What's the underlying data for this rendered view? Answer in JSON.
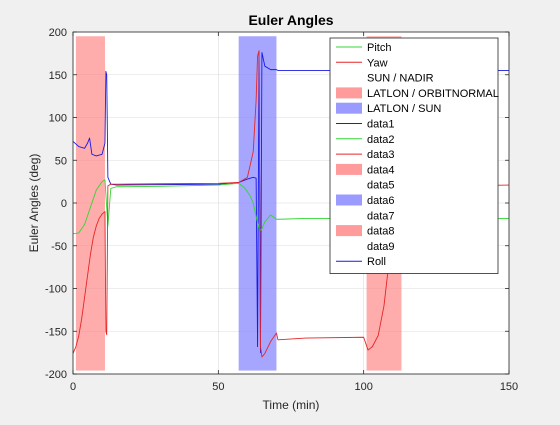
{
  "chart_data": {
    "type": "line",
    "title": "Euler Angles",
    "xlabel": "Time (min)",
    "ylabel": "Euler Angles (deg)",
    "xlim": [
      0,
      150
    ],
    "ylim": [
      -200,
      200
    ],
    "xticks": [
      0,
      50,
      100,
      150
    ],
    "yticks": [
      -200,
      -150,
      -100,
      -50,
      0,
      50,
      100,
      150,
      200
    ],
    "grid": true,
    "legend_position": "top-right",
    "shaded_regions": [
      {
        "name": "LATLON / ORBITNORMAL",
        "color": "#ff8080",
        "alpha": 0.65,
        "x": [
          1,
          11
        ]
      },
      {
        "name": "LATLON / SUN",
        "color": "#8080ff",
        "alpha": 0.7,
        "x": [
          57,
          70
        ]
      },
      {
        "name": "LATLON / ORBITNORMAL",
        "color": "#ff8080",
        "alpha": 0.65,
        "x": [
          101,
          113
        ]
      }
    ],
    "series": [
      {
        "name": "Roll",
        "color": "#1a1ae6",
        "x": [
          0,
          2,
          4,
          5,
          5.7,
          6.5,
          8,
          10,
          11,
          11.3,
          11.6,
          12,
          13,
          15,
          30,
          50,
          57,
          60,
          62,
          63,
          63.5,
          64,
          64.5,
          65,
          66,
          68,
          70,
          70.5,
          80,
          101,
          110,
          150
        ],
        "y": [
          72,
          66,
          64,
          70,
          76,
          57,
          55,
          57,
          70,
          154,
          150,
          30,
          22,
          21,
          21.5,
          22,
          24,
          28,
          30,
          29,
          -168,
          178,
          -175,
          176,
          160,
          156,
          156,
          155,
          155,
          155,
          155,
          155
        ]
      },
      {
        "name": "Pitch",
        "color": "#33d633",
        "x": [
          0,
          2,
          4,
          6,
          8,
          10,
          11,
          11.5,
          12,
          13,
          15,
          30,
          50,
          57,
          59,
          61,
          62,
          63,
          64,
          64.5,
          65,
          66,
          68,
          70,
          71,
          80,
          101,
          110,
          150
        ],
        "y": [
          -36,
          -35,
          -25,
          -5,
          15,
          25,
          27,
          0,
          -27,
          17,
          19,
          19.5,
          21,
          23,
          18,
          8,
          0,
          -16,
          -30,
          -32,
          -30,
          -22,
          -14,
          -19,
          -19,
          -18,
          -18,
          -18,
          -18
        ]
      },
      {
        "name": "Yaw",
        "color": "#e62626",
        "x": [
          0,
          1,
          2,
          3,
          4,
          5,
          6,
          7,
          8,
          9,
          10,
          11,
          11.3,
          11.6,
          12,
          13,
          15,
          30,
          50,
          57,
          60,
          62,
          63,
          63.5,
          64,
          64.5,
          65,
          66,
          68,
          70,
          70.5,
          80,
          100,
          101.5,
          103,
          105,
          107,
          109,
          111,
          113,
          115,
          130,
          150
        ],
        "y": [
          -176,
          -168,
          -155,
          -135,
          -110,
          -85,
          -60,
          -40,
          -27,
          -18,
          -13,
          -10,
          -150,
          -154,
          20,
          22,
          22,
          22.5,
          23,
          24,
          30,
          60,
          120,
          172,
          178,
          -168,
          -180,
          -176,
          -162,
          -152,
          -160,
          -158,
          -157,
          -172,
          -168,
          -155,
          -120,
          -60,
          -5,
          15,
          18,
          20,
          21
        ]
      }
    ],
    "legend": [
      {
        "label": "Pitch",
        "kind": "line",
        "color": "#33d633"
      },
      {
        "label": "Yaw",
        "kind": "line",
        "color": "#e62626"
      },
      {
        "label": "SUN / NADIR",
        "kind": "none",
        "color": ""
      },
      {
        "label": "LATLON / ORBITNORMAL",
        "kind": "patch",
        "color": "#ff9b9b"
      },
      {
        "label": "LATLON / SUN",
        "kind": "patch",
        "color": "#9b9bff"
      },
      {
        "label": "data1",
        "kind": "line",
        "color": "#1a1ae6"
      },
      {
        "label": "data2",
        "kind": "line",
        "color": "#33d633"
      },
      {
        "label": "data3",
        "kind": "line",
        "color": "#e62626"
      },
      {
        "label": "data4",
        "kind": "patch",
        "color": "#ff9b9b"
      },
      {
        "label": "data5",
        "kind": "none",
        "color": ""
      },
      {
        "label": "data6",
        "kind": "patch",
        "color": "#9b9bff"
      },
      {
        "label": "data7",
        "kind": "none",
        "color": ""
      },
      {
        "label": "data8",
        "kind": "patch",
        "color": "#ff9b9b"
      },
      {
        "label": "data9",
        "kind": "none",
        "color": ""
      },
      {
        "label": "Roll",
        "kind": "line",
        "color": "#1a1ae6"
      }
    ]
  }
}
